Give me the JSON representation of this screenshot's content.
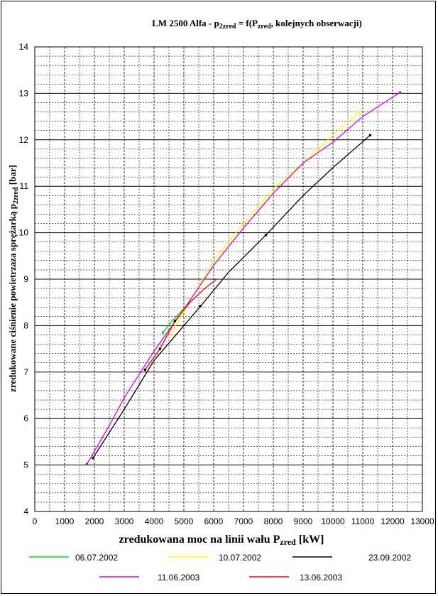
{
  "chart_data": {
    "type": "line",
    "title": "LM 2500 Alfa - p",
    "title_sub": "2zred",
    "title_mid": " = f(P",
    "title_sub2": "zred",
    "title_end": ", kolejnych obserwacji)",
    "xlabel": "zredukowana moc na linii wału P",
    "xlabel_sub": "zred",
    "xlabel_end": " [kW]",
    "ylabel": "zredukowane ciśnienie powietrzaza sprężarką p",
    "ylabel_sub": "2zred",
    "ylabel_end": " [bar]",
    "xlim": [
      0,
      13000
    ],
    "ylim": [
      4,
      14
    ],
    "x_ticks": [
      0,
      1000,
      2000,
      3000,
      4000,
      5000,
      6000,
      7000,
      8000,
      9000,
      10000,
      11000,
      12000,
      13000
    ],
    "y_ticks": [
      4,
      5,
      6,
      7,
      8,
      9,
      10,
      11,
      12,
      13,
      14
    ],
    "grid": true,
    "legend_position": "bottom",
    "series": [
      {
        "name": "06.07.2002",
        "color": "#00dd00",
        "x": [
          4300,
          4600,
          4900,
          5200,
          5450
        ],
        "y": [
          7.85,
          8.1,
          8.3,
          8.5,
          8.65
        ]
      },
      {
        "name": "10.07.2002",
        "color": "#ffff00",
        "x": [
          4500,
          5000,
          6000,
          7000,
          8000,
          9000,
          10000,
          10900
        ],
        "y": [
          7.75,
          8.3,
          9.4,
          10.2,
          10.95,
          11.5,
          12.1,
          12.6
        ]
      },
      {
        "name": "23.09.2002",
        "color": "#000000",
        "x": [
          1950,
          3000,
          4000,
          5000,
          5600,
          6500,
          7750,
          9000,
          10000,
          11250
        ],
        "y": [
          5.15,
          6.2,
          7.25,
          8.0,
          8.45,
          9.15,
          9.95,
          10.8,
          11.4,
          12.1
        ]
      },
      {
        "name": "11.06.2003",
        "color": "#e000e0",
        "x": [
          1750,
          2500,
          3000,
          3500,
          4000,
          4500,
          5000,
          6000,
          7000,
          8000,
          9000,
          10000,
          11000,
          12250
        ],
        "y": [
          5.02,
          5.85,
          6.45,
          6.95,
          7.45,
          7.9,
          8.35,
          9.3,
          10.1,
          10.85,
          11.5,
          11.95,
          12.5,
          13.02
        ]
      },
      {
        "name": "13.06.2003",
        "color": "#ff0000",
        "x": [
          3700,
          4200,
          4700,
          5200,
          5700,
          6100
        ],
        "y": [
          7.05,
          7.5,
          8.1,
          8.5,
          8.8,
          9.0
        ]
      }
    ],
    "markers": [
      {
        "x": 3700,
        "y": 7.05,
        "color": "#000000"
      },
      {
        "x": 4200,
        "y": 7.5,
        "color": "#000000"
      },
      {
        "x": 4700,
        "y": 8.1,
        "color": "#000000"
      },
      {
        "x": 5550,
        "y": 8.42,
        "color": "#000000"
      },
      {
        "x": 7750,
        "y": 9.95,
        "color": "#000000"
      },
      {
        "x": 11250,
        "y": 12.1,
        "color": "#000000"
      },
      {
        "x": 1950,
        "y": 5.15,
        "color": "#000000"
      },
      {
        "x": 12250,
        "y": 13.02,
        "color": "#e000e0"
      },
      {
        "x": 10900,
        "y": 12.6,
        "color": "#ffff00"
      },
      {
        "x": 4300,
        "y": 7.85,
        "color": "#00dd00"
      },
      {
        "x": 1750,
        "y": 5.02,
        "color": "#e000e0"
      }
    ]
  }
}
